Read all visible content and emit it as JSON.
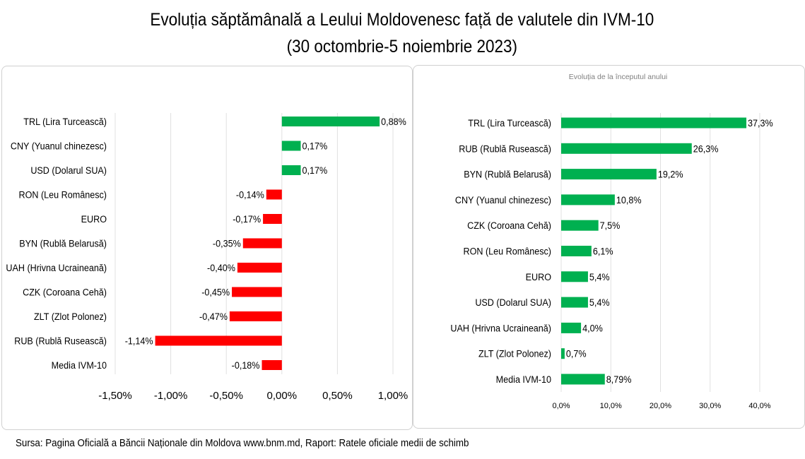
{
  "title_line1": "Evoluția săptămânală a Leului Moldovenesc față de valutele din IVM-10",
  "title_line2": "(30 octombrie-5 noiembrie 2023)",
  "source": "Sursa: Pagina Oficială a Băncii Naționale din Moldova www.bnm.md, Raport: Ratele oficiale medii de schimb",
  "colors": {
    "positive": "#00b050",
    "negative": "#ff0000",
    "grid": "#e0e0e0"
  },
  "chart_data": [
    {
      "type": "bar",
      "orientation": "horizontal",
      "title": "",
      "categories": [
        "TRL (Lira Turcească)",
        "CNY (Yuanul chinezesc)",
        "USD (Dolarul SUA)",
        "RON (Leu Românesc)",
        "EURO",
        "BYN (Rublă Belarusă)",
        "UAH (Hrivna Ucraineană)",
        "CZK (Coroana Cehă)",
        "ZLT (Zlot Polonez)",
        "RUB (Rublă Rusească)",
        "Media IVM-10"
      ],
      "values": [
        0.88,
        0.17,
        0.17,
        -0.14,
        -0.17,
        -0.35,
        -0.4,
        -0.45,
        -0.47,
        -1.14,
        -0.18
      ],
      "data_labels": [
        "0,88%",
        "0,17%",
        "0,17%",
        "-0,14%",
        "-0,17%",
        "-0,35%",
        "-0,40%",
        "-0,45%",
        "-0,47%",
        "-1,14%",
        "-0,18%"
      ],
      "xlim": [
        -1.5,
        1.0
      ],
      "xticks": [
        -1.5,
        -1.0,
        -0.5,
        0,
        0.5,
        1.0
      ],
      "xtick_labels": [
        "-1,50%",
        "-1,00%",
        "-0,50%",
        "0,00%",
        "0,50%",
        "1,00%"
      ],
      "grid": true
    },
    {
      "type": "bar",
      "orientation": "horizontal",
      "title": "Evoluția de la începutul anului",
      "categories": [
        "TRL (Lira Turcească)",
        "RUB (Rublă Rusească)",
        "BYN (Rublă Belarusă)",
        "CNY (Yuanul chinezesc)",
        "CZK (Coroana Cehă)",
        "RON (Leu Românesc)",
        "EURO",
        "USD (Dolarul SUA)",
        "UAH (Hrivna Ucraineană)",
        "ZLT (Zlot Polonez)",
        "Media IVM-10"
      ],
      "values": [
        37.3,
        26.3,
        19.2,
        10.8,
        7.5,
        6.1,
        5.4,
        5.4,
        4.0,
        0.7,
        8.79
      ],
      "data_labels": [
        "37,3%",
        "26,3%",
        "19,2%",
        "10,8%",
        "7,5%",
        "6,1%",
        "5,4%",
        "5,4%",
        "4,0%",
        "0,7%",
        "8,79%"
      ],
      "xlim": [
        0,
        40
      ],
      "xticks": [
        0,
        10,
        20,
        30,
        40
      ],
      "xtick_labels": [
        "0,0%",
        "10,0%",
        "20,0%",
        "30,0%",
        "40,0%"
      ],
      "grid": true
    }
  ]
}
